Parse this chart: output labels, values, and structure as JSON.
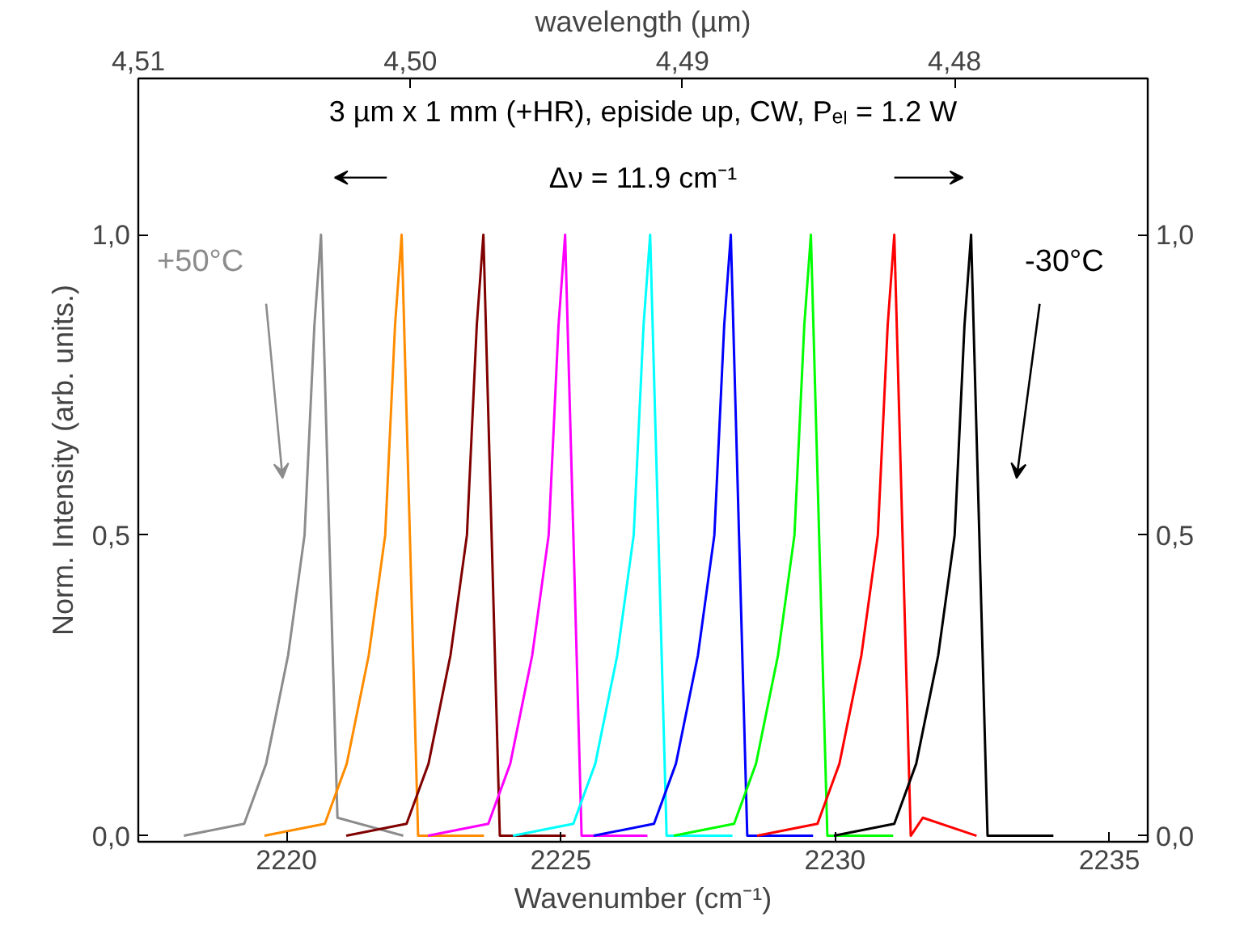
{
  "chart_data": {
    "type": "line",
    "xlabel": "Wavenumber (cm⁻¹)",
    "ylabel": "Norm. Intensity (arb. units.)",
    "x2label": "wavelength (µm)",
    "xlim": [
      2217.3,
      2235.7
    ],
    "xticks": [
      2220,
      2225,
      2230,
      2235
    ],
    "x2lim": [
      4.51,
      4.4729
    ],
    "x2ticks": [
      {
        "value": 4.51,
        "label": "4,51"
      },
      {
        "value": 4.5,
        "label": "4,50"
      },
      {
        "value": 4.49,
        "label": "4,49"
      },
      {
        "value": 4.48,
        "label": "4,48"
      }
    ],
    "ylim": [
      -0.01,
      1.26
    ],
    "yticks": [
      {
        "value": 0,
        "label": "0,0"
      },
      {
        "value": 0.5,
        "label": "0,5"
      },
      {
        "value": 1.0,
        "label": "1,0"
      }
    ],
    "y2lim": [
      -0.01,
      1.26
    ],
    "y2ticks": [
      {
        "value": 0,
        "label": "0,0"
      },
      {
        "value": 0.5,
        "label": "0,5"
      },
      {
        "value": 1.0,
        "label": "1,0"
      }
    ],
    "line_style": "solid",
    "series": [
      {
        "color": "#8c8c8c",
        "x": [
          2218.13,
          2219.23,
          2219.63,
          2220.03,
          2220.33,
          2220.51,
          2220.63,
          2220.78,
          2220.93,
          2222.13
        ],
        "values": [
          0,
          0.02,
          0.12,
          0.3,
          0.5,
          0.85,
          1.0,
          0.5,
          0.03,
          0
        ]
      },
      {
        "color": "#ff8c00",
        "x": [
          2219.6,
          2220.7,
          2221.1,
          2221.5,
          2221.8,
          2221.98,
          2222.1,
          2222.25,
          2222.4,
          2223.6
        ],
        "values": [
          0,
          0.02,
          0.12,
          0.3,
          0.5,
          0.85,
          1.0,
          0.5,
          0,
          0
        ]
      },
      {
        "color": "#800000",
        "x": [
          2221.09,
          2222.19,
          2222.59,
          2222.99,
          2223.29,
          2223.47,
          2223.59,
          2223.74,
          2223.89,
          2225.09
        ],
        "values": [
          0,
          0.02,
          0.12,
          0.3,
          0.5,
          0.85,
          1.0,
          0.5,
          0,
          0
        ]
      },
      {
        "color": "#ff00ff",
        "x": [
          2222.58,
          2223.68,
          2224.08,
          2224.48,
          2224.78,
          2224.96,
          2225.08,
          2225.23,
          2225.38,
          2226.58
        ],
        "values": [
          0,
          0.02,
          0.12,
          0.3,
          0.5,
          0.85,
          1.0,
          0.5,
          0,
          0
        ]
      },
      {
        "color": "#00ffff",
        "x": [
          2224.13,
          2225.23,
          2225.63,
          2226.03,
          2226.33,
          2226.51,
          2226.63,
          2226.78,
          2226.93,
          2228.13
        ],
        "values": [
          0,
          0.02,
          0.12,
          0.3,
          0.5,
          0.85,
          1.0,
          0.5,
          0,
          0
        ]
      },
      {
        "color": "#0000ff",
        "x": [
          2225.6,
          2226.7,
          2227.1,
          2227.5,
          2227.8,
          2227.98,
          2228.1,
          2228.25,
          2228.4,
          2229.6
        ],
        "values": [
          0,
          0.02,
          0.12,
          0.3,
          0.5,
          0.85,
          1.0,
          0.5,
          0,
          0
        ]
      },
      {
        "color": "#00ff00",
        "x": [
          2227.06,
          2228.16,
          2228.56,
          2228.96,
          2229.26,
          2229.44,
          2229.56,
          2229.71,
          2229.86,
          2231.06
        ],
        "values": [
          0,
          0.02,
          0.12,
          0.3,
          0.5,
          0.85,
          1.0,
          0.5,
          0,
          0
        ]
      },
      {
        "color": "#ff0000",
        "x": [
          2228.58,
          2229.68,
          2230.08,
          2230.48,
          2230.78,
          2230.96,
          2231.08,
          2231.23,
          2231.38,
          2231.6,
          2232.58
        ],
        "values": [
          0,
          0.02,
          0.12,
          0.3,
          0.5,
          0.85,
          1.0,
          0.5,
          0,
          0.03,
          0
        ]
      },
      {
        "color": "#000000",
        "x": [
          2229.98,
          2231.08,
          2231.48,
          2231.88,
          2232.18,
          2232.36,
          2232.48,
          2232.63,
          2232.78,
          2233.98
        ],
        "values": [
          0,
          0.02,
          0.12,
          0.3,
          0.5,
          0.85,
          1.0,
          0.5,
          0,
          0
        ]
      }
    ],
    "annotations": [
      "3 µm x 1 mm (+HR), episide up, CW, Pₑₗ = 1.2 W",
      "Δν = 11.9 cm⁻¹",
      "+50°C",
      "-30°C"
    ]
  }
}
